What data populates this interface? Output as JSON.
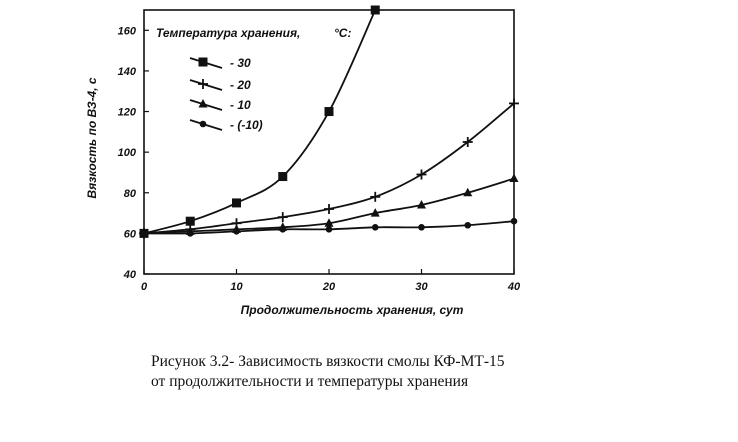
{
  "chart_data": {
    "type": "line",
    "title": "",
    "xlabel": "Продолжительность хранения, сут",
    "ylabel": "Вязкость по ВЗ-4, с",
    "xlim": [
      0,
      40
    ],
    "ylim": [
      40,
      170
    ],
    "x_ticks": [
      0,
      10,
      20,
      30,
      40
    ],
    "y_ticks": [
      40,
      60,
      80,
      100,
      120,
      140,
      160
    ],
    "grid": false,
    "legend_title": "Температура хранения,",
    "legend_title_unit": "°C:",
    "legend_placement": "top-left",
    "series": [
      {
        "name": "- 30",
        "marker": "square",
        "x": [
          0,
          5,
          10,
          15,
          20,
          25
        ],
        "y": [
          60,
          66,
          75,
          88,
          120,
          170
        ]
      },
      {
        "name": "- 20",
        "marker": "plus",
        "x": [
          0,
          5,
          10,
          15,
          20,
          25,
          30,
          35,
          40
        ],
        "y": [
          60,
          62,
          65,
          68,
          72,
          78,
          89,
          105,
          124
        ]
      },
      {
        "name": "- 10",
        "marker": "triangle",
        "x": [
          0,
          5,
          10,
          15,
          20,
          25,
          30,
          35,
          40
        ],
        "y": [
          60,
          61,
          62,
          63,
          65,
          70,
          74,
          80,
          87
        ]
      },
      {
        "name": "- (-10)",
        "marker": "circle",
        "x": [
          0,
          5,
          10,
          15,
          20,
          25,
          30,
          35,
          40
        ],
        "y": [
          60,
          60,
          61,
          62,
          62,
          63,
          63,
          64,
          66
        ]
      }
    ]
  },
  "caption": {
    "line1": "Рисунок 3.2- Зависимость вязкости смолы КФ-МТ-15",
    "line2": "от продолжительности и температуры хранения"
  }
}
